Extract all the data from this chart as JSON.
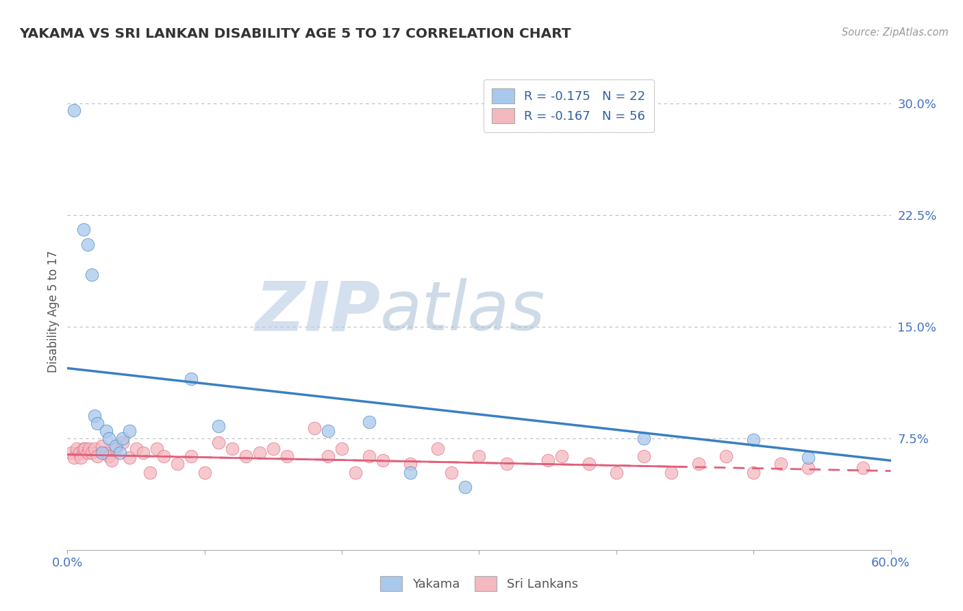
{
  "title": "YAKAMA VS SRI LANKAN DISABILITY AGE 5 TO 17 CORRELATION CHART",
  "source": "Source: ZipAtlas.com",
  "ylabel_label": "Disability Age 5 to 17",
  "xlim": [
    0.0,
    0.6
  ],
  "ylim": [
    0.0,
    0.32
  ],
  "ytick_labels_right": [
    "",
    "7.5%",
    "",
    "15.0%",
    "",
    "22.5%",
    "",
    "30.0%"
  ],
  "ytick_vals_right": [
    0.0,
    0.075,
    0.1125,
    0.15,
    0.1875,
    0.225,
    0.2625,
    0.3
  ],
  "yakama_color": "#A8C8EC",
  "srilankan_color": "#F4B8C0",
  "trendline_yakama_color": "#3A7FC1",
  "trendline_srilankan_color": "#E0607A",
  "background_color": "#ffffff",
  "grid_color": "#bbbbbb",
  "watermark_zip": "ZIP",
  "watermark_atlas": "atlas",
  "watermark_color_zip": "#c8d8ea",
  "watermark_color_atlas": "#c0c8d8",
  "yakama_trend_x0": 0.0,
  "yakama_trend_y0": 0.122,
  "yakama_trend_x1": 0.6,
  "yakama_trend_y1": 0.06,
  "srilankan_trend_x0": 0.0,
  "srilankan_trend_y0": 0.064,
  "srilankan_trend_x1": 0.6,
  "srilankan_trend_y1": 0.053,
  "yakama_x": [
    0.005,
    0.012,
    0.015,
    0.018,
    0.02,
    0.022,
    0.025,
    0.028,
    0.03,
    0.035,
    0.038,
    0.04,
    0.045,
    0.09,
    0.11,
    0.19,
    0.22,
    0.25,
    0.29,
    0.42,
    0.5,
    0.54
  ],
  "yakama_y": [
    0.295,
    0.215,
    0.205,
    0.185,
    0.09,
    0.085,
    0.065,
    0.08,
    0.075,
    0.07,
    0.065,
    0.075,
    0.08,
    0.115,
    0.083,
    0.08,
    0.086,
    0.052,
    0.042,
    0.075,
    0.074,
    0.062
  ],
  "srilankan_x": [
    0.003,
    0.005,
    0.007,
    0.009,
    0.01,
    0.012,
    0.013,
    0.015,
    0.016,
    0.018,
    0.02,
    0.022,
    0.025,
    0.028,
    0.03,
    0.032,
    0.035,
    0.04,
    0.045,
    0.05,
    0.055,
    0.06,
    0.065,
    0.07,
    0.08,
    0.09,
    0.1,
    0.11,
    0.12,
    0.13,
    0.14,
    0.15,
    0.16,
    0.18,
    0.19,
    0.2,
    0.21,
    0.22,
    0.23,
    0.25,
    0.27,
    0.28,
    0.3,
    0.32,
    0.35,
    0.36,
    0.38,
    0.4,
    0.42,
    0.44,
    0.46,
    0.48,
    0.5,
    0.52,
    0.54,
    0.58
  ],
  "srilankan_y": [
    0.065,
    0.062,
    0.068,
    0.065,
    0.062,
    0.068,
    0.068,
    0.065,
    0.068,
    0.065,
    0.068,
    0.063,
    0.07,
    0.065,
    0.063,
    0.06,
    0.068,
    0.072,
    0.062,
    0.068,
    0.065,
    0.052,
    0.068,
    0.063,
    0.058,
    0.063,
    0.052,
    0.072,
    0.068,
    0.063,
    0.065,
    0.068,
    0.063,
    0.082,
    0.063,
    0.068,
    0.052,
    0.063,
    0.06,
    0.058,
    0.068,
    0.052,
    0.063,
    0.058,
    0.06,
    0.063,
    0.058,
    0.052,
    0.063,
    0.052,
    0.058,
    0.063,
    0.052,
    0.058,
    0.055,
    0.055
  ]
}
